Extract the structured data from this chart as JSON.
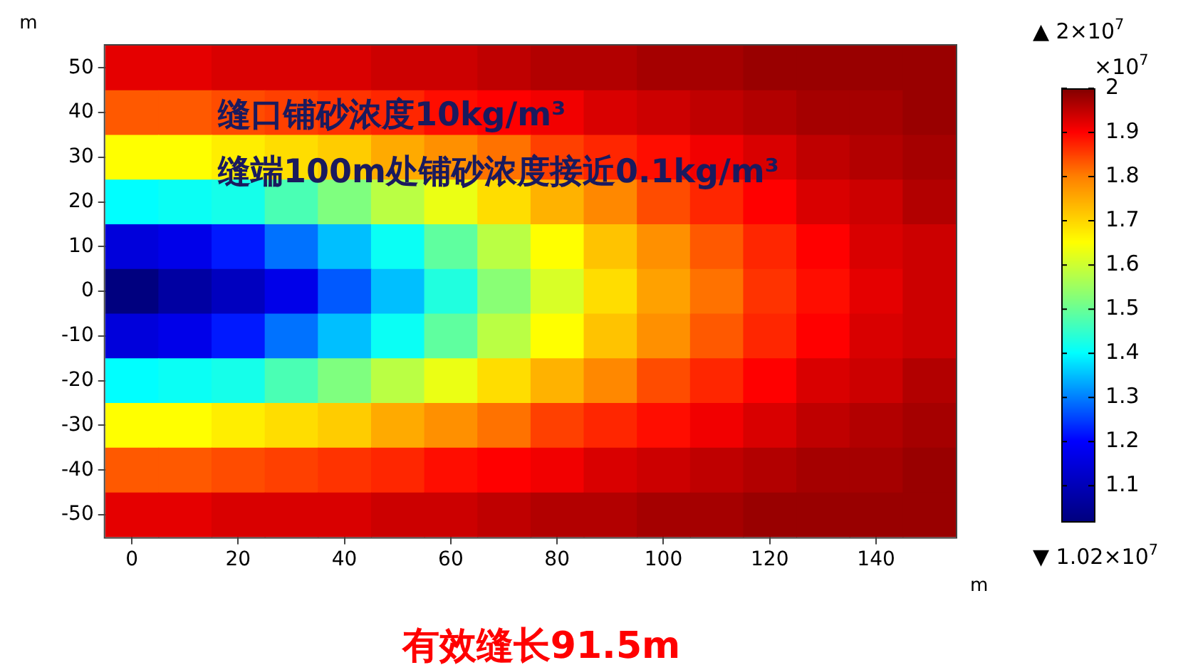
{
  "chart_data": {
    "type": "heatmap",
    "xlabel": "m",
    "ylabel": "m",
    "clabel": "×10$^{7}$",
    "categories": [
      "0",
      null,
      "20",
      null,
      "40",
      null,
      "60",
      null,
      "80",
      null,
      "100",
      null,
      "120",
      null,
      "140",
      null
    ],
    "y_categories": [
      "50",
      "40",
      "30",
      "20",
      "10",
      "0",
      "-10",
      "-20",
      "-30",
      "-40",
      "-50"
    ],
    "clim": [
      1.02,
      2
    ],
    "cticks": [
      1.1,
      1.2,
      1.3,
      1.4,
      1.5,
      1.6,
      1.7,
      1.8,
      1.9,
      2
    ],
    "cells": [
      [
        1.92,
        1.92,
        1.93,
        1.93,
        1.93,
        1.94,
        1.94,
        1.95,
        1.96,
        1.96,
        1.97,
        1.97,
        1.98,
        1.98,
        1.98,
        1.98
      ],
      [
        1.83,
        1.83,
        1.84,
        1.85,
        1.86,
        1.87,
        1.89,
        1.9,
        1.91,
        1.93,
        1.94,
        1.95,
        1.96,
        1.97,
        1.97,
        1.98
      ],
      [
        1.65,
        1.65,
        1.67,
        1.69,
        1.71,
        1.75,
        1.78,
        1.81,
        1.85,
        1.87,
        1.89,
        1.91,
        1.93,
        1.95,
        1.96,
        1.97
      ],
      [
        1.4,
        1.41,
        1.42,
        1.47,
        1.52,
        1.58,
        1.63,
        1.69,
        1.74,
        1.79,
        1.84,
        1.87,
        1.9,
        1.93,
        1.94,
        1.96
      ],
      [
        1.15,
        1.17,
        1.22,
        1.29,
        1.35,
        1.41,
        1.49,
        1.58,
        1.65,
        1.72,
        1.78,
        1.83,
        1.87,
        1.9,
        1.93,
        1.94
      ],
      [
        1.02,
        1.07,
        1.11,
        1.17,
        1.27,
        1.35,
        1.43,
        1.53,
        1.61,
        1.69,
        1.76,
        1.81,
        1.86,
        1.89,
        1.92,
        1.94
      ],
      [
        1.15,
        1.17,
        1.22,
        1.29,
        1.35,
        1.41,
        1.49,
        1.58,
        1.65,
        1.72,
        1.78,
        1.83,
        1.87,
        1.9,
        1.93,
        1.94
      ],
      [
        1.4,
        1.41,
        1.42,
        1.47,
        1.52,
        1.58,
        1.63,
        1.69,
        1.74,
        1.79,
        1.84,
        1.87,
        1.9,
        1.93,
        1.94,
        1.96
      ],
      [
        1.65,
        1.65,
        1.67,
        1.69,
        1.71,
        1.75,
        1.78,
        1.81,
        1.85,
        1.87,
        1.89,
        1.91,
        1.93,
        1.95,
        1.96,
        1.97
      ],
      [
        1.83,
        1.83,
        1.84,
        1.85,
        1.86,
        1.87,
        1.89,
        1.9,
        1.91,
        1.93,
        1.94,
        1.95,
        1.96,
        1.97,
        1.97,
        1.98
      ],
      [
        1.92,
        1.92,
        1.93,
        1.93,
        1.93,
        1.94,
        1.94,
        1.95,
        1.96,
        1.96,
        1.97,
        1.97,
        1.98,
        1.98,
        1.98,
        1.98
      ]
    ],
    "annotations": [
      "缝口铺砂浓度10kg/m³",
      "缝端100m处铺砂浓度接近0.1kg/m³",
      "▲ 2×10$^{7}$",
      "▼ 1.02×10$^{7}$",
      "有效缝长91.5m"
    ]
  }
}
